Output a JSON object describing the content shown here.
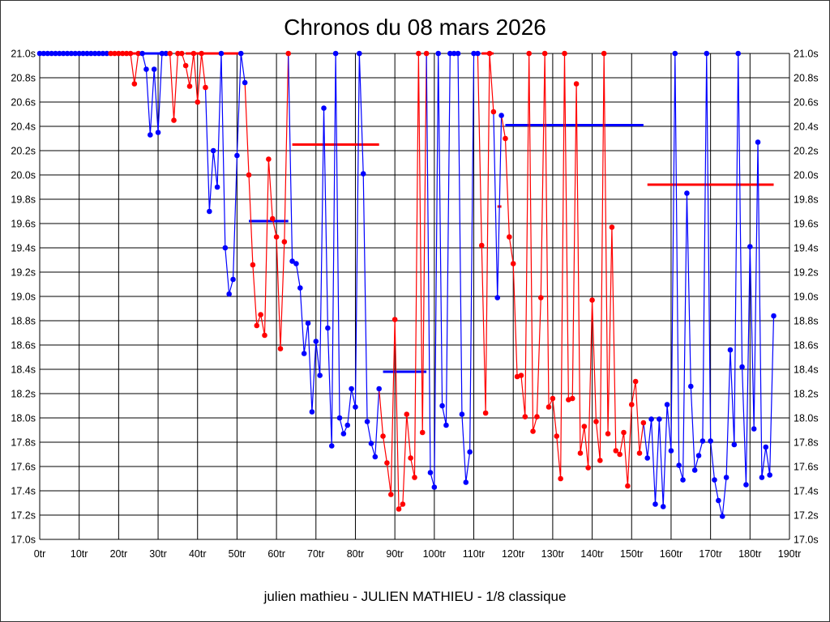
{
  "chart_data": {
    "type": "line",
    "title": "Chronos du 08 mars 2026",
    "footer": "julien mathieu - JULIEN MATHIEU - 1/8 classique",
    "xlabel": "",
    "ylabel": "",
    "xlim": [
      0,
      190
    ],
    "ylim": [
      17.0,
      21.0
    ],
    "grid": true,
    "x_ticks": [
      "0tr",
      "10tr",
      "20tr",
      "30tr",
      "40tr",
      "50tr",
      "60tr",
      "70tr",
      "80tr",
      "90tr",
      "100tr",
      "110tr",
      "120tr",
      "130tr",
      "140tr",
      "150tr",
      "160tr",
      "170tr",
      "180tr",
      "190tr"
    ],
    "y_ticks": [
      "17.0s",
      "17.2s",
      "17.4s",
      "17.6s",
      "17.8s",
      "18.0s",
      "18.2s",
      "18.4s",
      "18.6s",
      "18.8s",
      "19.0s",
      "19.2s",
      "19.4s",
      "19.6s",
      "19.8s",
      "20.0s",
      "20.2s",
      "20.4s",
      "20.6s",
      "20.8s",
      "21.0s"
    ],
    "colors": {
      "blue": "#0000ff",
      "red": "#ff0000",
      "grid": "#000000"
    },
    "segments": [
      {
        "color": "blue",
        "points": [
          [
            0,
            21
          ],
          [
            1,
            21
          ],
          [
            2,
            21
          ],
          [
            3,
            21
          ],
          [
            4,
            21
          ],
          [
            5,
            21
          ],
          [
            6,
            21
          ],
          [
            7,
            21
          ],
          [
            8,
            21
          ],
          [
            9,
            21
          ],
          [
            10,
            21
          ],
          [
            11,
            21
          ],
          [
            12,
            21
          ],
          [
            13,
            21
          ],
          [
            14,
            21
          ],
          [
            15,
            21
          ],
          [
            16,
            21
          ],
          [
            17,
            21
          ]
        ]
      },
      {
        "color": "red",
        "points": [
          [
            18,
            21
          ],
          [
            19,
            21
          ],
          [
            20,
            21
          ],
          [
            21,
            21
          ],
          [
            22,
            21
          ],
          [
            23,
            21
          ],
          [
            24,
            20.75
          ],
          [
            25,
            21
          ]
        ]
      },
      {
        "color": "blue",
        "points": [
          [
            26,
            21
          ],
          [
            27,
            20.87
          ],
          [
            28,
            20.33
          ],
          [
            29,
            20.87
          ],
          [
            30,
            20.35
          ],
          [
            31,
            21
          ],
          [
            32,
            21
          ]
        ]
      },
      {
        "color": "red",
        "points": [
          [
            33,
            21
          ],
          [
            34,
            20.45
          ],
          [
            35,
            21
          ],
          [
            36,
            21
          ],
          [
            37,
            20.9
          ],
          [
            38,
            20.73
          ],
          [
            39,
            21
          ],
          [
            40,
            20.6
          ],
          [
            41,
            21
          ],
          [
            42,
            20.72
          ]
        ]
      },
      {
        "color": "blue",
        "points": [
          [
            43,
            19.7
          ],
          [
            44,
            20.2
          ],
          [
            45,
            19.9
          ],
          [
            46,
            21
          ],
          [
            47,
            19.4
          ],
          [
            48,
            19.02
          ],
          [
            49,
            19.14
          ],
          [
            50,
            20.16
          ],
          [
            51,
            21
          ],
          [
            52,
            20.76
          ]
        ]
      },
      {
        "color": "red",
        "points": [
          [
            53,
            20.0
          ],
          [
            54,
            19.26
          ],
          [
            55,
            18.76
          ],
          [
            56,
            18.85
          ],
          [
            57,
            18.68
          ],
          [
            58,
            20.13
          ],
          [
            59,
            19.64
          ],
          [
            60,
            19.49
          ],
          [
            61,
            18.57
          ],
          [
            62,
            19.45
          ],
          [
            63,
            21
          ]
        ]
      },
      {
        "color": "blue",
        "points": [
          [
            64,
            19.29
          ],
          [
            65,
            19.27
          ],
          [
            66,
            19.07
          ],
          [
            67,
            18.53
          ],
          [
            68,
            18.78
          ],
          [
            69,
            18.05
          ],
          [
            70,
            18.63
          ],
          [
            71,
            18.35
          ],
          [
            72,
            20.55
          ],
          [
            73,
            18.74
          ],
          [
            74,
            17.77
          ],
          [
            75,
            21
          ],
          [
            76,
            18.0
          ],
          [
            77,
            17.87
          ],
          [
            78,
            17.94
          ],
          [
            79,
            18.24
          ],
          [
            80,
            18.09
          ],
          [
            81,
            21
          ],
          [
            82,
            20.01
          ],
          [
            83,
            17.97
          ],
          [
            84,
            17.79
          ],
          [
            85,
            17.68
          ],
          [
            86,
            18.24
          ]
        ]
      },
      {
        "color": "red",
        "points": [
          [
            87,
            17.85
          ],
          [
            88,
            17.63
          ],
          [
            89,
            17.37
          ],
          [
            90,
            18.81
          ],
          [
            91,
            17.25
          ],
          [
            92,
            17.29
          ],
          [
            93,
            18.03
          ],
          [
            94,
            17.67
          ],
          [
            95,
            17.51
          ],
          [
            96,
            21
          ],
          [
            97,
            17.88
          ],
          [
            98,
            21
          ]
        ]
      },
      {
        "color": "blue",
        "points": [
          [
            99,
            17.55
          ],
          [
            100,
            17.43
          ],
          [
            101,
            21
          ],
          [
            102,
            18.1
          ],
          [
            103,
            17.94
          ],
          [
            104,
            21
          ],
          [
            105,
            21
          ],
          [
            106,
            21
          ],
          [
            107,
            18.03
          ],
          [
            108,
            17.47
          ],
          [
            109,
            17.72
          ],
          [
            110,
            21
          ],
          [
            111,
            21
          ]
        ]
      },
      {
        "color": "red",
        "points": [
          [
            112,
            19.42
          ],
          [
            113,
            18.04
          ],
          [
            114,
            21
          ],
          [
            115,
            20.52
          ]
        ]
      },
      {
        "color": "blue",
        "points": [
          [
            116,
            18.99
          ],
          [
            117,
            20.49
          ]
        ]
      },
      {
        "color": "red",
        "points": [
          [
            118,
            20.3
          ],
          [
            119,
            19.49
          ],
          [
            120,
            19.27
          ],
          [
            121,
            18.34
          ],
          [
            122,
            18.35
          ],
          [
            123,
            18.01
          ],
          [
            124,
            21
          ],
          [
            125,
            17.89
          ],
          [
            126,
            18.01
          ],
          [
            127,
            18.99
          ],
          [
            128,
            21
          ],
          [
            129,
            18.09
          ],
          [
            130,
            18.16
          ],
          [
            131,
            17.85
          ],
          [
            132,
            17.5
          ],
          [
            133,
            21
          ],
          [
            134,
            18.15
          ],
          [
            135,
            18.16
          ],
          [
            136,
            20.75
          ],
          [
            137,
            17.71
          ],
          [
            138,
            17.93
          ],
          [
            139,
            17.59
          ],
          [
            140,
            18.97
          ],
          [
            141,
            17.97
          ],
          [
            142,
            17.65
          ],
          [
            143,
            21
          ],
          [
            144,
            17.87
          ],
          [
            145,
            19.57
          ],
          [
            146,
            17.73
          ],
          [
            147,
            17.7
          ],
          [
            148,
            17.88
          ],
          [
            149,
            17.44
          ],
          [
            150,
            18.11
          ],
          [
            151,
            18.3
          ],
          [
            152,
            17.71
          ],
          [
            153,
            17.96
          ]
        ]
      },
      {
        "color": "blue",
        "points": [
          [
            154,
            17.67
          ],
          [
            155,
            17.99
          ],
          [
            156,
            17.29
          ],
          [
            157,
            17.99
          ],
          [
            158,
            17.27
          ],
          [
            159,
            18.11
          ],
          [
            160,
            17.73
          ],
          [
            161,
            21
          ],
          [
            162,
            17.61
          ],
          [
            163,
            17.49
          ],
          [
            164,
            19.85
          ],
          [
            165,
            18.26
          ],
          [
            166,
            17.57
          ],
          [
            167,
            17.69
          ],
          [
            168,
            17.81
          ],
          [
            169,
            21
          ],
          [
            170,
            17.81
          ],
          [
            171,
            17.49
          ],
          [
            172,
            17.32
          ],
          [
            173,
            17.19
          ],
          [
            174,
            17.51
          ],
          [
            175,
            18.56
          ],
          [
            176,
            17.78
          ],
          [
            177,
            21
          ],
          [
            178,
            18.42
          ],
          [
            179,
            17.45
          ],
          [
            180,
            19.41
          ],
          [
            181,
            17.91
          ],
          [
            182,
            20.27
          ],
          [
            183,
            17.51
          ],
          [
            184,
            17.76
          ],
          [
            185,
            17.53
          ],
          [
            186,
            18.84
          ]
        ]
      }
    ],
    "averages": [
      {
        "color": "red",
        "from": 17,
        "to": 25,
        "value": 21.0
      },
      {
        "color": "blue",
        "from": 26,
        "to": 33,
        "value": 21.0
      },
      {
        "color": "red",
        "from": 37,
        "to": 51,
        "value": 21.0
      },
      {
        "color": "blue",
        "from": 53,
        "to": 63,
        "value": 19.62
      },
      {
        "color": "red",
        "from": 64,
        "to": 86,
        "value": 20.25
      },
      {
        "color": "blue",
        "from": 87,
        "to": 98,
        "value": 18.38
      },
      {
        "color": "red",
        "from": 112,
        "to": 115,
        "value": 21.0
      },
      {
        "color": "red",
        "from": 116,
        "to": 117,
        "value": 19.74
      },
      {
        "color": "blue",
        "from": 118,
        "to": 153,
        "value": 20.41
      },
      {
        "color": "red",
        "from": 154,
        "to": 186,
        "value": 19.92
      }
    ]
  }
}
